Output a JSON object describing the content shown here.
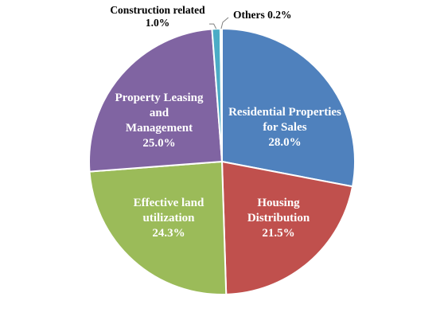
{
  "chart_data": {
    "type": "pie",
    "slices": [
      {
        "label": [
          "Residential Properties",
          "for Sales"
        ],
        "value": 28.0,
        "value_label": "28.0%",
        "color": "#4f81bd"
      },
      {
        "label": [
          "Housing",
          "Distribution"
        ],
        "value": 21.5,
        "value_label": "21.5%",
        "color": "#c0504d"
      },
      {
        "label": [
          "Effective land",
          "utilization"
        ],
        "value": 24.3,
        "value_label": "24.3%",
        "color": "#9bbb59"
      },
      {
        "label": [
          "Property Leasing",
          "and",
          "Management"
        ],
        "value": 25.0,
        "value_label": "25.0%",
        "color": "#8064a2"
      },
      {
        "label": [
          "Construction related"
        ],
        "value": 1.0,
        "value_label": "1.0%",
        "color": "#4bacc6"
      },
      {
        "label": [
          "Others"
        ],
        "value": 0.2,
        "value_label": "0.2%",
        "color": "#f79646"
      }
    ],
    "start_angle_deg": 0,
    "direction": "clockwise",
    "legend": "none",
    "data_labels": "inside, with leader lines for small slices"
  }
}
